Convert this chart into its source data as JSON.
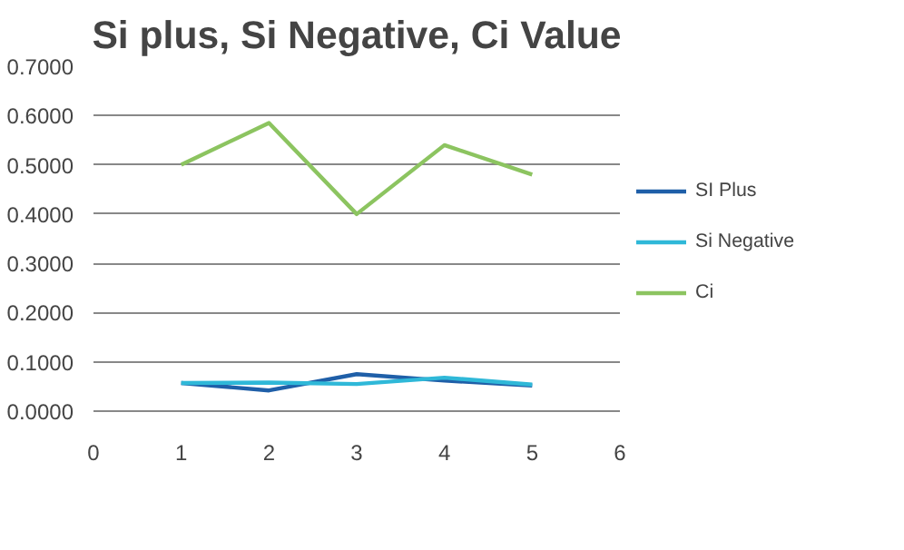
{
  "chart_data": {
    "type": "line",
    "title": "Si plus, Si Negative, Ci Value",
    "x": [
      1,
      2,
      3,
      4,
      5
    ],
    "series": [
      {
        "name": "SI Plus",
        "color": "#1f5fa8",
        "values": [
          0.057,
          0.042,
          0.075,
          0.062,
          0.052
        ]
      },
      {
        "name": "Si Negative",
        "color": "#2fb8d8",
        "values": [
          0.057,
          0.058,
          0.055,
          0.068,
          0.054
        ]
      },
      {
        "name": "Ci",
        "color": "#8cc460",
        "values": [
          0.5,
          0.585,
          0.4,
          0.54,
          0.48
        ]
      }
    ],
    "xlim": [
      0,
      6
    ],
    "xticks": [
      0,
      1,
      2,
      3,
      4,
      5,
      6
    ],
    "ylim": [
      0,
      0.7
    ],
    "yticks": [
      {
        "value": 0,
        "label": "0.0000"
      },
      {
        "value": 0.1,
        "label": "0.1000"
      },
      {
        "value": 0.2,
        "label": "0.2000"
      },
      {
        "value": 0.3,
        "label": "0.3000"
      },
      {
        "value": 0.4,
        "label": "0.4000"
      },
      {
        "value": 0.5,
        "label": "0.5000"
      },
      {
        "value": 0.6,
        "label": "0.6000"
      },
      {
        "value": 0.7,
        "label": "0.7000"
      }
    ],
    "grid": "y",
    "legend": "right",
    "marker": "none",
    "line_style": "solid"
  }
}
